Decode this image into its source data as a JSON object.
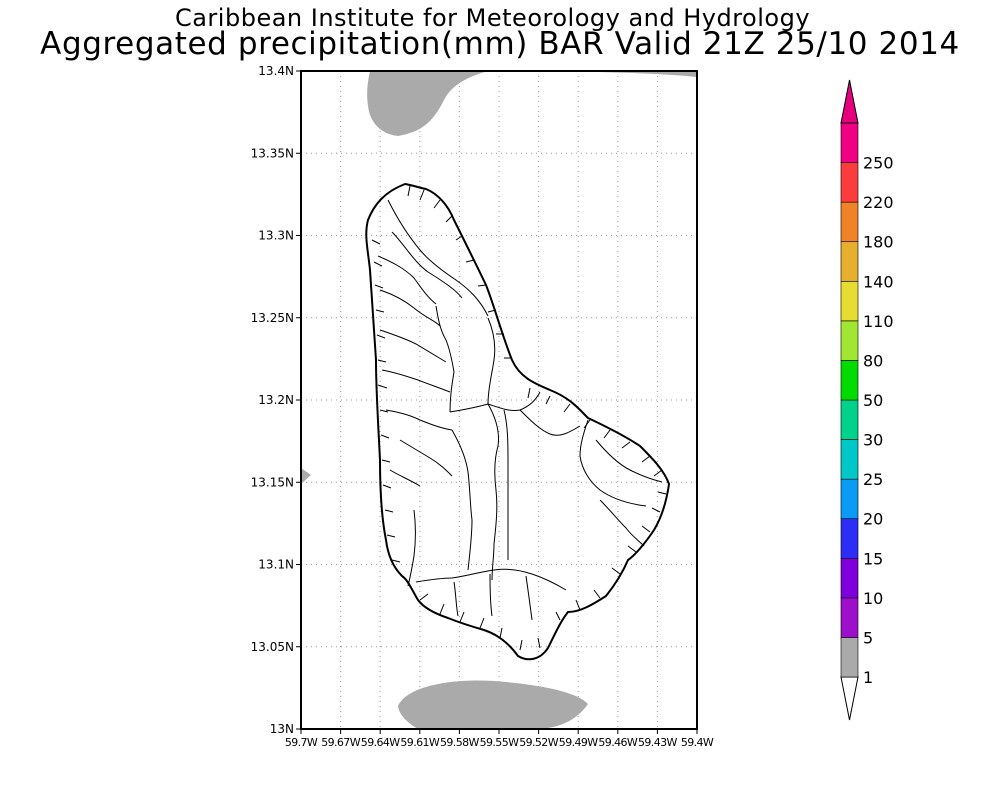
{
  "header": {
    "line1": "Caribbean Institute for Meteorology and Hydrology",
    "line2": "Aggregated precipitation(mm) BAR Valid 21Z 25/10 2014"
  },
  "map": {
    "region": "Barbados",
    "lat_labels": [
      "13.4N",
      "13.35N",
      "13.3N",
      "13.25N",
      "13.2N",
      "13.15N",
      "13.1N",
      "13.05N",
      "13N"
    ],
    "lon_labels": [
      "59.7W",
      "59.67W",
      "59.64W",
      "59.61W",
      "59.58W",
      "59.55W",
      "59.52W",
      "59.49W",
      "59.46W",
      "59.43W",
      "59.4W"
    ],
    "lat_range": [
      13.0,
      13.4
    ],
    "lon_range": [
      -59.7,
      -59.4
    ],
    "grid": "dotted",
    "precip_fill_color": "#aaaaaa",
    "precip_areas_class": "1-5"
  },
  "colorbar": {
    "labels": [
      "1",
      "5",
      "10",
      "15",
      "20",
      "25",
      "30",
      "50",
      "80",
      "110",
      "140",
      "180",
      "220",
      "250"
    ],
    "colors": [
      "#aaaaaa",
      "#9e0fcc",
      "#7f00dc",
      "#2d2ef5",
      "#0a9cf5",
      "#00c8c8",
      "#00d28c",
      "#00dc00",
      "#a0e632",
      "#e6dc32",
      "#e6af2d",
      "#f08228",
      "#fa3c3c",
      "#f00082"
    ]
  }
}
